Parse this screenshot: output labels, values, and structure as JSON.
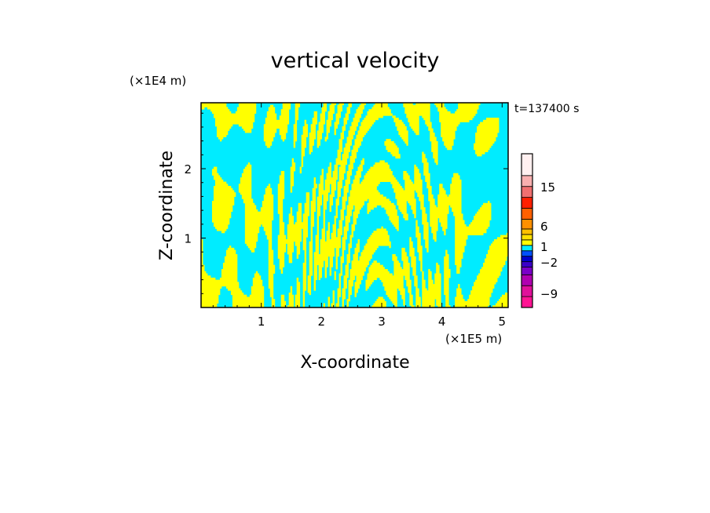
{
  "chart_data": {
    "type": "heatmap",
    "title": "vertical velocity",
    "xlabel": "X-coordinate",
    "ylabel": "Z-coordinate",
    "x_unit": "(×1E5 m)",
    "y_unit": "(×1E4 m)",
    "time_label": "t=137400 s",
    "xlim": [
      0,
      5.1
    ],
    "ylim": [
      0,
      2.95
    ],
    "x_ticks": [
      1,
      2,
      3,
      4,
      5
    ],
    "y_ticks": [
      1,
      2
    ],
    "palette": {
      "positive_small": "#ffff00",
      "negative_small": "#00ecff",
      "frame": "#000000"
    },
    "colorbar": {
      "levels": [
        {
          "color": "#ff1493"
        },
        {
          "color": "#e0109a"
        },
        {
          "color": "#b000b0"
        },
        {
          "color": "#7a00c8"
        },
        {
          "color": "#3a00c8"
        },
        {
          "color": "#0000cc"
        },
        {
          "color": "#0050ff"
        },
        {
          "color": "#00ecff"
        },
        {
          "color": "#ffff00"
        },
        {
          "color": "#ffe000"
        },
        {
          "color": "#ffc000"
        },
        {
          "color": "#ff9000"
        },
        {
          "color": "#ff6000"
        },
        {
          "color": "#ff2000"
        },
        {
          "color": "#f07070"
        },
        {
          "color": "#f8b0b0"
        },
        {
          "color": "#fff0f0"
        }
      ],
      "tick_labels": [
        "15",
        "6",
        "1",
        "−2",
        "−9"
      ]
    }
  }
}
